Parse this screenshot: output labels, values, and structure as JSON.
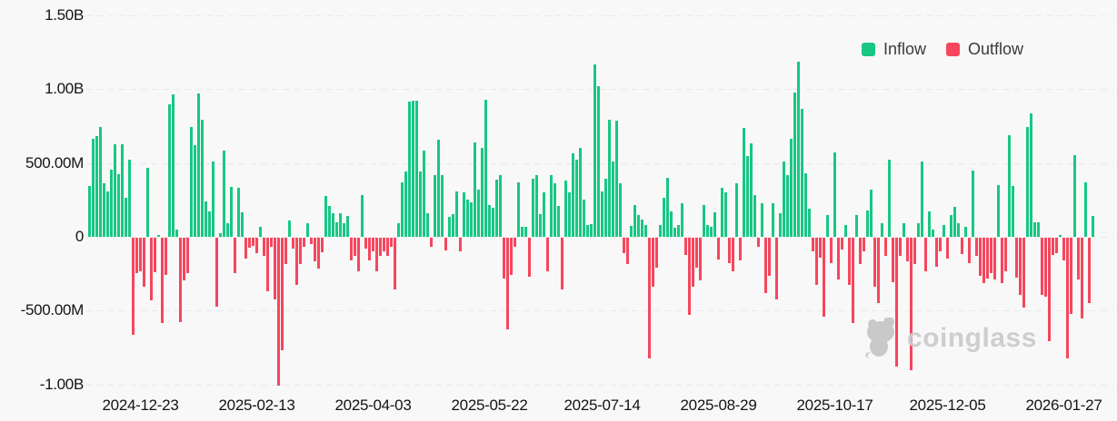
{
  "chart": {
    "watermark_text": "coinglass"
  },
  "chart_data": {
    "type": "bar",
    "title": "",
    "xlabel": "",
    "ylabel": "",
    "unit": "USD (B = billions, M = millions)",
    "sign_encoding": "positive bar = Inflow (green), negative bar = Outflow (red), one bar per day",
    "grid": "horizontal dashed",
    "legend_position": "top-right",
    "legend": [
      {
        "name": "Inflow",
        "color": "#17c784"
      },
      {
        "name": "Outflow",
        "color": "#f6465d"
      }
    ],
    "y_tick_labels": [
      "1.50B",
      "1.00B",
      "500.00M",
      "0",
      "-500.00M",
      "-1.00B"
    ],
    "y_tick_values_millions": [
      1500,
      1000,
      500,
      0,
      -500,
      -1000
    ],
    "ylim_millions": [
      -1150,
      1500
    ],
    "x_tick_labels": [
      "2024-12-23",
      "2025-02-13",
      "2025-04-03",
      "2025-05-22",
      "2025-07-14",
      "2025-08-29",
      "2025-10-17",
      "2025-12-05",
      "2026-01-27"
    ],
    "x_tick_bar_indices": [
      14,
      46,
      78,
      110,
      141,
      173,
      205,
      236,
      268
    ],
    "values_millions": [
      345,
      665,
      680,
      745,
      365,
      310,
      455,
      630,
      425,
      630,
      265,
      520,
      -660,
      -240,
      -230,
      -335,
      470,
      -425,
      -235,
      15,
      -575,
      -250,
      900,
      965,
      50,
      -570,
      -290,
      -240,
      745,
      620,
      970,
      790,
      240,
      175,
      510,
      -465,
      25,
      585,
      90,
      340,
      -240,
      330,
      165,
      -140,
      -65,
      -55,
      -105,
      70,
      -120,
      -365,
      -60,
      -420,
      -1000,
      -765,
      -180,
      110,
      -75,
      -320,
      -180,
      -60,
      95,
      -45,
      -160,
      -210,
      -100,
      275,
      210,
      160,
      100,
      160,
      95,
      140,
      -155,
      -120,
      -230,
      280,
      -75,
      -155,
      -90,
      -230,
      -120,
      -95,
      -120,
      -60,
      -350,
      95,
      370,
      445,
      915,
      925,
      920,
      440,
      585,
      160,
      -60,
      420,
      660,
      420,
      -85,
      135,
      155,
      310,
      -90,
      300,
      255,
      235,
      640,
      320,
      600,
      930,
      215,
      195,
      385,
      420,
      -275,
      -620,
      -255,
      -60,
      370,
      65,
      65,
      -265,
      395,
      415,
      155,
      300,
      -230,
      420,
      360,
      210,
      -350,
      380,
      300,
      565,
      525,
      605,
      250,
      80,
      85,
      1170,
      1020,
      305,
      395,
      790,
      510,
      785,
      360,
      -105,
      -180,
      75,
      215,
      150,
      115,
      80,
      -815,
      -330,
      -205,
      80,
      265,
      400,
      175,
      60,
      80,
      225,
      -115,
      -525,
      -330,
      -205,
      -290,
      215,
      80,
      70,
      165,
      -150,
      330,
      300,
      -170,
      -225,
      360,
      -155,
      740,
      545,
      635,
      285,
      -60,
      225,
      -375,
      -260,
      230,
      -420,
      160,
      510,
      420,
      665,
      980,
      1185,
      865,
      430,
      190,
      -95,
      -320,
      -135,
      -535,
      150,
      -175,
      570,
      -280,
      -80,
      80,
      -320,
      -575,
      145,
      -180,
      -90,
      180,
      320,
      -330,
      -440,
      95,
      -120,
      520,
      -300,
      -870,
      -120,
      90,
      -160,
      -900,
      -180,
      90,
      510,
      -230,
      175,
      50,
      -195,
      -90,
      80,
      -140,
      145,
      205,
      95,
      -110,
      70,
      -175,
      450,
      -120,
      -260,
      -310,
      -275,
      -240,
      -280,
      350,
      -310,
      -230,
      690,
      345,
      -270,
      -390,
      -475,
      745,
      835,
      100,
      100,
      -385,
      -400,
      -700,
      -115,
      -105,
      15,
      -155,
      -815,
      -515,
      555,
      -280,
      -545,
      370,
      -440,
      140
    ]
  }
}
